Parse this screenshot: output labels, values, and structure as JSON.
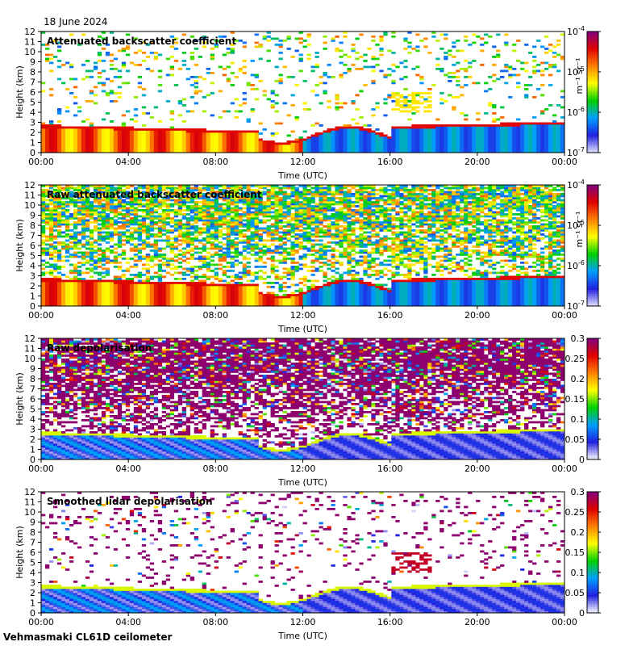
{
  "header": {
    "date": "18 June 2024"
  },
  "footer": {
    "instrument": "Vehmasmaki CL61D ceilometer"
  },
  "palette": {
    "backscatter": [
      "#e0e0ff",
      "#2020e0",
      "#00a0ff",
      "#00d000",
      "#ffff00",
      "#ff8000",
      "#e00000",
      "#800080"
    ],
    "depolarisation": [
      "#ffffff",
      "#2020e0",
      "#00a0ff",
      "#00d000",
      "#ffff00",
      "#ff8000",
      "#e00000",
      "#800080"
    ]
  },
  "chart_data": [
    {
      "type": "heatmap",
      "title": "Attenuated backscatter coefficient",
      "xlabel": "Time (UTC)",
      "ylabel": "Height (km)",
      "x_ticks": [
        "00:00",
        "04:00",
        "08:00",
        "12:00",
        "16:00",
        "20:00",
        "00:00"
      ],
      "xlim_hours": [
        0,
        24
      ],
      "y_ticks": [
        "0",
        "1",
        "2",
        "3",
        "4",
        "5",
        "6",
        "7",
        "8",
        "9",
        "10",
        "11",
        "12"
      ],
      "ylim": [
        0,
        12
      ],
      "colorbar": {
        "scale": "log",
        "range": [
          1e-07,
          0.0001
        ],
        "unit": "m-1 sr-1",
        "ticks": [
          {
            "base": "10",
            "exp": "-4"
          },
          {
            "base": "10",
            "exp": "-5"
          },
          {
            "base": "10",
            "exp": "-6"
          },
          {
            "base": "10",
            "exp": "-7"
          }
        ],
        "unit_label": "m⁻¹ sr⁻¹"
      },
      "mode": "backscatter",
      "noise": 0.15
    },
    {
      "type": "heatmap",
      "title": "Raw attenuated backscatter coefficient",
      "xlabel": "Time (UTC)",
      "ylabel": "Height (km)",
      "x_ticks": [
        "00:00",
        "04:00",
        "08:00",
        "12:00",
        "16:00",
        "20:00",
        "00:00"
      ],
      "xlim_hours": [
        0,
        24
      ],
      "y_ticks": [
        "0",
        "1",
        "2",
        "3",
        "4",
        "5",
        "6",
        "7",
        "8",
        "9",
        "10",
        "11",
        "12"
      ],
      "ylim": [
        0,
        12
      ],
      "colorbar": {
        "scale": "log",
        "range": [
          1e-07,
          0.0001
        ],
        "unit": "m-1 sr-1",
        "ticks": [
          {
            "base": "10",
            "exp": "-4"
          },
          {
            "base": "10",
            "exp": "-5"
          },
          {
            "base": "10",
            "exp": "-6"
          },
          {
            "base": "10",
            "exp": "-7"
          }
        ],
        "unit_label": "m⁻¹ sr⁻¹"
      },
      "mode": "backscatter",
      "noise": 0.85
    },
    {
      "type": "heatmap",
      "title": "Raw depolarisation",
      "xlabel": "Time (UTC)",
      "ylabel": "Height (km)",
      "x_ticks": [
        "00:00",
        "04:00",
        "08:00",
        "12:00",
        "16:00",
        "20:00",
        "00:00"
      ],
      "xlim_hours": [
        0,
        24
      ],
      "y_ticks": [
        "0",
        "1",
        "2",
        "3",
        "4",
        "5",
        "6",
        "7",
        "8",
        "9",
        "10",
        "11",
        "12"
      ],
      "ylim": [
        0,
        12
      ],
      "colorbar": {
        "scale": "linear",
        "range": [
          0,
          0.3
        ],
        "ticks": [
          "0.3",
          "0.25",
          "0.2",
          "0.15",
          "0.1",
          "0.05",
          "0"
        ]
      },
      "mode": "depol",
      "noise": 0.9
    },
    {
      "type": "heatmap",
      "title": "Smoothed lidar depolarisation",
      "xlabel": "Time (UTC)",
      "ylabel": "Height (km)",
      "x_ticks": [
        "00:00",
        "04:00",
        "08:00",
        "12:00",
        "16:00",
        "20:00",
        "00:00"
      ],
      "xlim_hours": [
        0,
        24
      ],
      "y_ticks": [
        "0",
        "1",
        "2",
        "3",
        "4",
        "5",
        "6",
        "7",
        "8",
        "9",
        "10",
        "11",
        "12"
      ],
      "ylim": [
        0,
        12
      ],
      "colorbar": {
        "scale": "linear",
        "range": [
          0,
          0.3
        ],
        "ticks": [
          "0.3",
          "0.25",
          "0.2",
          "0.15",
          "0.1",
          "0.05",
          "0"
        ]
      },
      "mode": "depol",
      "noise": 0.12
    }
  ]
}
